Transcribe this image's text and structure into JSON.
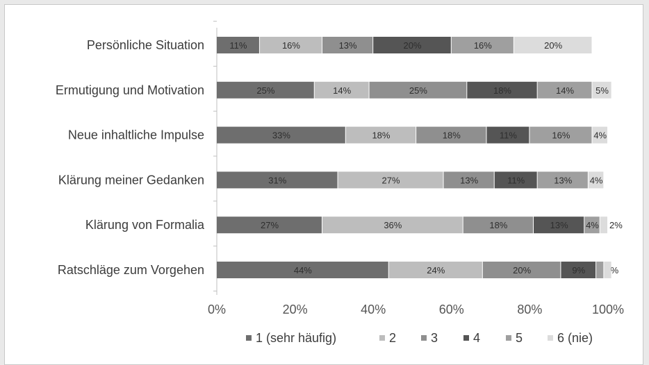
{
  "chart_data": {
    "type": "bar",
    "orientation": "horizontal",
    "stacked": "percent",
    "categories": [
      "Persönliche Situation",
      "Ermutigung und Motivation",
      "Neue inhaltliche Impulse",
      "Klärung meiner Gedanken",
      "Klärung von Formalia",
      "Ratschläge zum Vorgehen"
    ],
    "series": [
      {
        "name": "1 (sehr häufig)",
        "color": "#6e6e6e",
        "values": [
          11,
          25,
          33,
          31,
          27,
          44
        ]
      },
      {
        "name": "2",
        "color": "#bdbdbd",
        "values": [
          16,
          14,
          18,
          27,
          36,
          24
        ]
      },
      {
        "name": "3",
        "color": "#8f8f8f",
        "values": [
          13,
          25,
          18,
          13,
          18,
          20
        ]
      },
      {
        "name": "4",
        "color": "#555555",
        "values": [
          20,
          18,
          11,
          11,
          13,
          9
        ]
      },
      {
        "name": "5",
        "color": "#9f9f9f",
        "values": [
          16,
          14,
          16,
          13,
          4,
          2
        ]
      },
      {
        "name": "6 (nie)",
        "color": "#dcdcdc",
        "values": [
          20,
          5,
          4,
          4,
          2,
          2
        ]
      }
    ],
    "data_labels": [
      [
        "11%",
        "16%",
        "13%",
        "20%",
        "16%",
        "20%"
      ],
      [
        "25%",
        "14%",
        "25%",
        "18%",
        "14%",
        "5%"
      ],
      [
        "33%",
        "18%",
        "18%",
        "11%",
        "16%",
        "4%"
      ],
      [
        "31%",
        "27%",
        "13%",
        "11%",
        "13%",
        "4%"
      ],
      [
        "27%",
        "36%",
        "18%",
        "13%",
        "4%",
        "2%"
      ],
      [
        "44%",
        "24%",
        "20%",
        "9%",
        "2%",
        ""
      ]
    ],
    "xticks": [
      "0%",
      "20%",
      "40%",
      "60%",
      "80%",
      "100%"
    ],
    "xlim": [
      0,
      100
    ],
    "legend_position": "bottom",
    "grid": false
  }
}
